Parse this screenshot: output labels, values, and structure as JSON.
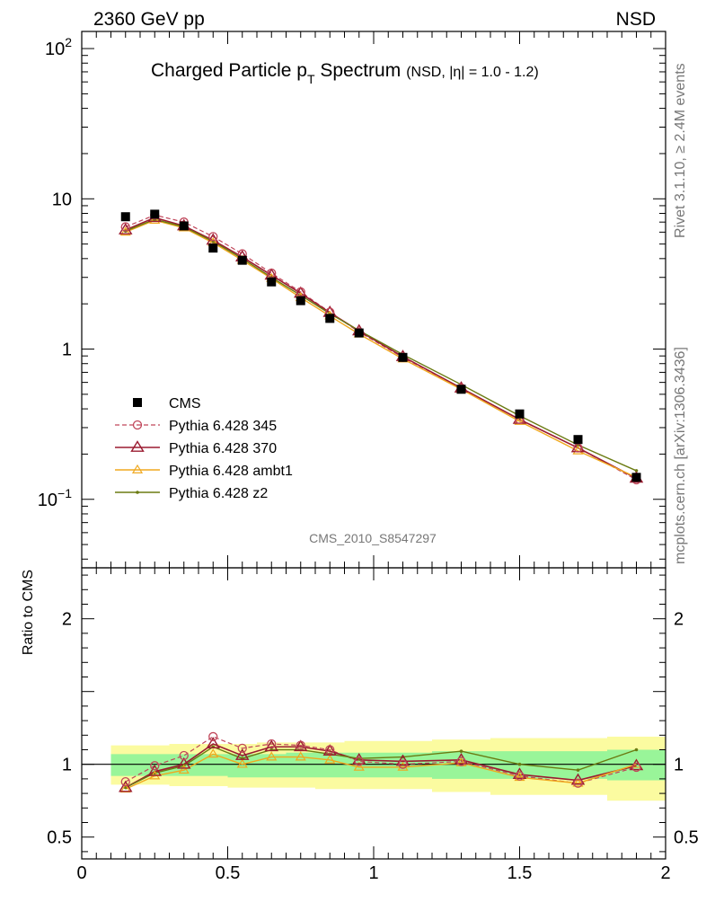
{
  "header": {
    "left": "2360 GeV pp",
    "right": "NSD"
  },
  "title": {
    "main": "Charged Particle p",
    "sub": "T",
    "main2": " Spectrum",
    "qualifier": "(NSD, |η| = 1.0 - 1.2)"
  },
  "side_labels": {
    "rivet": "Rivet 3.1.10, ≥ 2.4M events",
    "mcplots": "mcplots.cern.ch [arXiv:1306.3436]"
  },
  "watermark": "CMS_2010_S8547297",
  "ratio_ylabel": "Ratio to CMS",
  "colors": {
    "cms": "#000000",
    "p345": "#c0465a",
    "p370": "#9b1c31",
    "ambt1": "#f0a81e",
    "z2": "#6b7b12",
    "band_inner": "#99f599",
    "band_outer": "#fbfba0"
  },
  "chart_data": [
    {
      "type": "scatter",
      "title": "Charged Particle pT Spectrum (NSD, |η| = 1.0 - 1.2)",
      "xlabel": "",
      "ylabel": "",
      "xlim": [
        0,
        2
      ],
      "ylim": [
        0.035,
        130
      ],
      "yscale": "log",
      "x": [
        0.15,
        0.25,
        0.35,
        0.45,
        0.55,
        0.65,
        0.75,
        0.85,
        0.95,
        1.1,
        1.3,
        1.5,
        1.7,
        1.9
      ],
      "y_ticks": [
        {
          "v": 0.1,
          "base": "10",
          "exp": "−1"
        },
        {
          "v": 1,
          "label": "1"
        },
        {
          "v": 10,
          "label": "10"
        },
        {
          "v": 100,
          "base": "10",
          "exp": "2"
        }
      ],
      "legend_position": "left",
      "series": [
        {
          "name": "CMS",
          "key": "cms",
          "values": [
            7.6,
            7.9,
            6.6,
            4.7,
            3.9,
            2.8,
            2.1,
            1.6,
            1.28,
            0.88,
            0.54,
            0.37,
            0.25,
            0.14
          ]
        },
        {
          "name": "Pythia 6.428 345",
          "key": "p345",
          "values": [
            6.5,
            7.8,
            7.0,
            5.6,
            4.3,
            3.2,
            2.4,
            1.76,
            1.3,
            0.88,
            0.55,
            0.34,
            0.22,
            0.135
          ]
        },
        {
          "name": "Pythia 6.428 370",
          "key": "p370",
          "values": [
            6.2,
            7.5,
            6.6,
            5.3,
            4.1,
            3.1,
            2.35,
            1.75,
            1.32,
            0.89,
            0.55,
            0.34,
            0.22,
            0.138
          ]
        },
        {
          "name": "Pythia 6.428 ambt1",
          "key": "ambt1",
          "values": [
            6.0,
            7.2,
            6.4,
            5.1,
            3.9,
            2.95,
            2.2,
            1.66,
            1.26,
            0.86,
            0.54,
            0.33,
            0.21,
            0.14
          ]
        },
        {
          "name": "Pythia 6.428 z2",
          "key": "z2",
          "values": [
            6.1,
            7.3,
            6.5,
            5.2,
            4.0,
            3.0,
            2.28,
            1.72,
            1.33,
            0.92,
            0.58,
            0.36,
            0.23,
            0.155
          ]
        }
      ]
    },
    {
      "type": "line",
      "ylabel": "Ratio to CMS",
      "xlabel": "",
      "xlim": [
        0,
        2
      ],
      "ylim": [
        0.35,
        2.35
      ],
      "x_ticks": [
        {
          "v": 0,
          "label": "0"
        },
        {
          "v": 0.5,
          "label": "0.5"
        },
        {
          "v": 1,
          "label": "1"
        },
        {
          "v": 1.5,
          "label": "1.5"
        },
        {
          "v": 2,
          "label": "2"
        }
      ],
      "y_ticks": [
        {
          "v": 0.5,
          "label": "0.5"
        },
        {
          "v": 1,
          "label": "1"
        },
        {
          "v": 2,
          "label": "2"
        }
      ],
      "x": [
        0.15,
        0.25,
        0.35,
        0.45,
        0.55,
        0.65,
        0.75,
        0.85,
        0.95,
        1.1,
        1.3,
        1.5,
        1.7,
        1.9
      ],
      "bins": [
        [
          0.1,
          0.2
        ],
        [
          0.2,
          0.3
        ],
        [
          0.3,
          0.4
        ],
        [
          0.4,
          0.5
        ],
        [
          0.5,
          0.6
        ],
        [
          0.6,
          0.7
        ],
        [
          0.7,
          0.8
        ],
        [
          0.8,
          0.9
        ],
        [
          0.9,
          1.0
        ],
        [
          1.0,
          1.2
        ],
        [
          1.2,
          1.4
        ],
        [
          1.4,
          1.6
        ],
        [
          1.6,
          1.8
        ],
        [
          1.8,
          2.0
        ]
      ],
      "band_inner": [
        [
          0.92,
          1.07
        ],
        [
          0.92,
          1.07
        ],
        [
          0.92,
          1.07
        ],
        [
          0.92,
          1.07
        ],
        [
          0.91,
          1.07
        ],
        [
          0.91,
          1.07
        ],
        [
          0.91,
          1.08
        ],
        [
          0.91,
          1.08
        ],
        [
          0.91,
          1.08
        ],
        [
          0.91,
          1.08
        ],
        [
          0.9,
          1.09
        ],
        [
          0.9,
          1.09
        ],
        [
          0.9,
          1.09
        ],
        [
          0.89,
          1.1
        ]
      ],
      "band_outer": [
        [
          0.86,
          1.13
        ],
        [
          0.86,
          1.13
        ],
        [
          0.85,
          1.14
        ],
        [
          0.85,
          1.14
        ],
        [
          0.84,
          1.14
        ],
        [
          0.84,
          1.15
        ],
        [
          0.84,
          1.15
        ],
        [
          0.83,
          1.15
        ],
        [
          0.83,
          1.16
        ],
        [
          0.83,
          1.16
        ],
        [
          0.81,
          1.17
        ],
        [
          0.79,
          1.18
        ],
        [
          0.79,
          1.18
        ],
        [
          0.75,
          1.19
        ]
      ],
      "series": [
        {
          "name": "Pythia 6.428 345",
          "key": "p345",
          "values": [
            0.88,
            0.99,
            1.06,
            1.19,
            1.11,
            1.14,
            1.13,
            1.1,
            1.02,
            1.0,
            1.02,
            0.92,
            0.87,
            0.98
          ]
        },
        {
          "name": "Pythia 6.428 370",
          "key": "p370",
          "values": [
            0.84,
            0.95,
            1.0,
            1.14,
            1.06,
            1.12,
            1.12,
            1.09,
            1.03,
            1.02,
            1.03,
            0.93,
            0.89,
            0.99
          ]
        },
        {
          "name": "Pythia 6.428 ambt1",
          "key": "ambt1",
          "values": [
            0.83,
            0.92,
            0.96,
            1.07,
            1.0,
            1.05,
            1.05,
            1.03,
            0.98,
            0.98,
            1.01,
            0.91,
            0.87,
            1.0
          ]
        },
        {
          "name": "Pythia 6.428 z2",
          "key": "z2",
          "values": [
            0.84,
            0.94,
            0.99,
            1.12,
            1.04,
            1.1,
            1.1,
            1.07,
            1.04,
            1.05,
            1.09,
            1.0,
            0.96,
            1.1
          ]
        }
      ]
    }
  ]
}
